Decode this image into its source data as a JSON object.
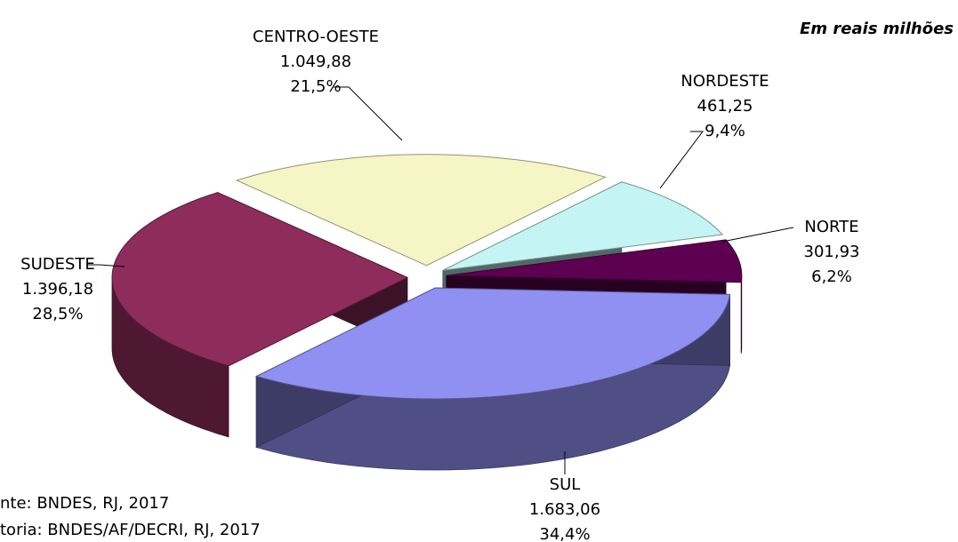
{
  "chart_data": {
    "type": "pie",
    "subtitle": "Em reais milhões",
    "categories": [
      "CENTRO-OESTE",
      "NORDESTE",
      "NORTE",
      "SUL",
      "SUDESTE"
    ],
    "values": [
      1049.88,
      461.25,
      301.93,
      1683.06,
      1396.18
    ],
    "value_labels": [
      "1.049,88",
      "461,25",
      "301,93",
      "1.683,06",
      "1.396,18"
    ],
    "percentages": [
      21.5,
      9.4,
      6.2,
      34.4,
      28.5
    ],
    "percentage_labels": [
      "21,5%",
      "9,4%",
      "6,2%",
      "34,4%",
      "28,5%"
    ],
    "colors": [
      "#f5f5c6",
      "#c4f5f4",
      "#5e0052",
      "#9090f2",
      "#8e2c5c"
    ],
    "notes": [
      "nte: BNDES, RJ, 2017",
      "toria: BNDES/AF/DECRI, RJ, 2017"
    ]
  }
}
